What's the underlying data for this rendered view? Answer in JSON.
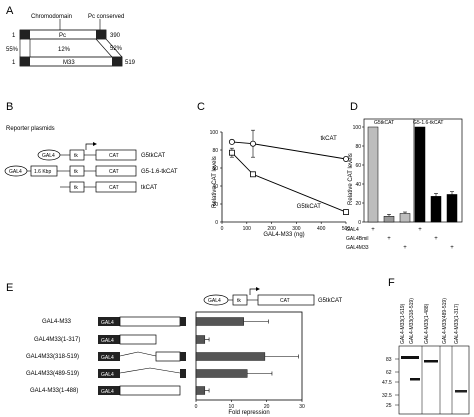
{
  "panels": {
    "A": {
      "label": "A",
      "domain_left": "Chromodomain",
      "domain_right": "Pc conserved",
      "pc": {
        "start": "1",
        "name": "Pc",
        "end": "390"
      },
      "m33": {
        "start": "1",
        "name": "M33",
        "end": "519"
      },
      "id_left": "55%",
      "id_mid": "12%",
      "id_right": "52%"
    },
    "B": {
      "label": "B",
      "title": "Reporter plasmids",
      "constructs": [
        {
          "left": "GAL4",
          "mid": "",
          "tk": "tk",
          "cat": "CAT",
          "name": "G5tkCAT"
        },
        {
          "left": "GAL4",
          "mid": "1.6 Kbp",
          "tk": "tk",
          "cat": "CAT",
          "name": "G5-1.6-tkCAT"
        },
        {
          "left": "",
          "mid": "",
          "tk": "tk",
          "cat": "CAT",
          "name": "tkCAT"
        }
      ]
    },
    "C": {
      "label": "C",
      "xlabel": "GAL4-M33 (ng)",
      "ylabel": "Relative CAT levels",
      "yticks": [
        "100",
        "80",
        "60",
        "40",
        "20",
        "0"
      ],
      "xticks": [
        "0",
        "100",
        "200",
        "300",
        "400",
        "500"
      ],
      "series_labels": [
        "tkCAT",
        "G5tkCAT"
      ]
    },
    "D": {
      "label": "D",
      "ylabel": "Relative CAT levels",
      "group_labels": [
        "G5tkCAT",
        "G5-1.6-tkCAT"
      ],
      "yticks": [
        "100",
        "80",
        "60",
        "40",
        "20",
        "0"
      ],
      "rows": [
        {
          "label": "GAL4",
          "marks": [
            "+",
            "",
            "",
            "+",
            "",
            ""
          ]
        },
        {
          "label": "GAL4Bmil",
          "marks": [
            "",
            "+",
            "",
            "",
            "+",
            ""
          ]
        },
        {
          "label": "GAL4M33",
          "marks": [
            "",
            "",
            "+",
            "",
            "",
            "+"
          ]
        }
      ]
    },
    "E": {
      "label": "E",
      "reporter": {
        "gal4": "GAL4",
        "tk": "tk",
        "cat": "CAT",
        "name": "G5tkCAT"
      },
      "box_label": "GAL4",
      "constructs": [
        "GAL4-M33",
        "GAL4M33(1-317)",
        "GAL4M33(318-519)",
        "GAL4M33(489-519)",
        "GAL4-M33(1-488)"
      ],
      "xlabel": "Fold repression",
      "xticks": [
        "0",
        "10",
        "20",
        "30"
      ]
    },
    "F": {
      "label": "F",
      "lanes": [
        "GAL4-M33(1-519)",
        "GAL4-M33(318-519)",
        "GAL4-M33(1-488)",
        "GAL4-M33(489-519)",
        "GAL4-M33(1-317)"
      ],
      "mw": [
        "83",
        "62",
        "47.5",
        "32.5",
        "25"
      ]
    }
  },
  "chart_data": [
    {
      "type": "line",
      "title": "",
      "xlabel": "GAL4-M33 (ng)",
      "ylabel": "Relative CAT levels",
      "xlim": [
        0,
        500
      ],
      "ylim": [
        0,
        100
      ],
      "series": [
        {
          "name": "tkCAT",
          "marker": "circle",
          "x": [
            40,
            125,
            500
          ],
          "y": [
            89,
            87,
            70
          ],
          "err": [
            0,
            15,
            0
          ]
        },
        {
          "name": "G5tkCAT",
          "marker": "square",
          "x": [
            40,
            125,
            500
          ],
          "y": [
            77,
            53,
            11
          ],
          "err": [
            5,
            0,
            0
          ]
        }
      ]
    },
    {
      "type": "bar",
      "title": "",
      "ylabel": "Relative CAT levels",
      "ylim": [
        0,
        100
      ],
      "categories": [
        "G5tkCAT GAL4",
        "G5tkCAT GAL4Bmil",
        "G5tkCAT GAL4M33",
        "G5-1.6-tkCAT GAL4",
        "G5-1.6-tkCAT GAL4Bmil",
        "G5-1.6-tkCAT GAL4M33"
      ],
      "values": [
        100,
        6,
        9,
        100,
        27,
        29
      ],
      "colors": [
        "#bdbdbd",
        "#9a9a9a",
        "#bdbdbd",
        "#000000",
        "#000000",
        "#000000"
      ]
    },
    {
      "type": "bar",
      "orientation": "horizontal",
      "title": "",
      "xlabel": "Fold repression",
      "xlim": [
        0,
        30
      ],
      "categories": [
        "GAL4-M33",
        "GAL4M33(1-317)",
        "GAL4M33(318-519)",
        "GAL4M33(489-519)",
        "GAL4-M33(1-488)"
      ],
      "values": [
        13.5,
        2.5,
        19.5,
        14.5,
        2.5
      ],
      "errors": [
        7,
        1.2,
        9.5,
        7,
        1.2
      ]
    }
  ]
}
